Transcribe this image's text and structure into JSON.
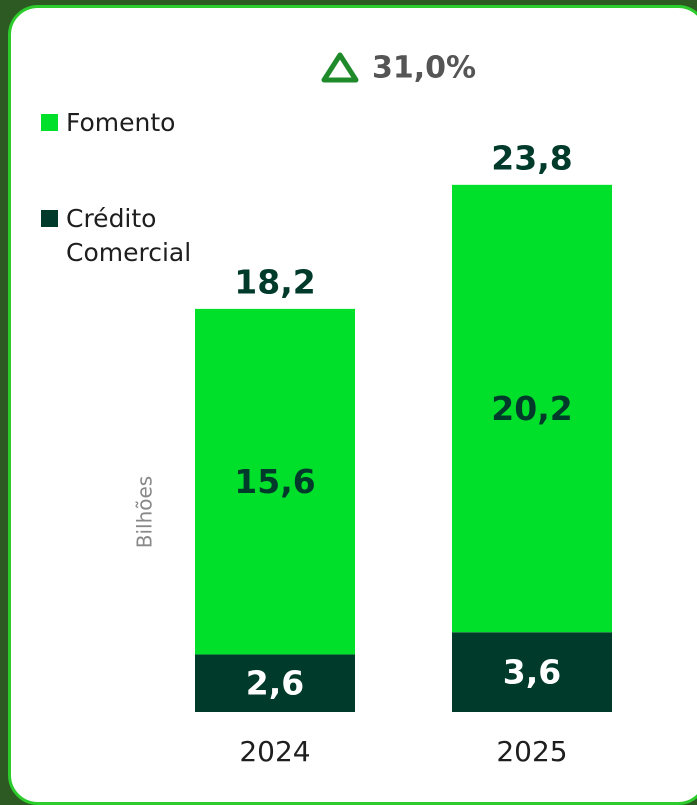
{
  "chart_data": {
    "type": "stacked_bar",
    "annotation": "31,0%",
    "y_label": "Bilhões",
    "categories": [
      "2024",
      "2025"
    ],
    "series": [
      {
        "name": "Fomento",
        "color": "#00e02a",
        "label_color": "#003a2a",
        "values": [
          15.6,
          20.2
        ],
        "value_labels": [
          "15,6",
          "20,2"
        ]
      },
      {
        "name": "Crédito Comercial",
        "color": "#003a2a",
        "label_color": "#ffffff",
        "values": [
          2.6,
          3.6
        ],
        "value_labels": [
          "2,6",
          "3,6"
        ]
      }
    ],
    "totals": [
      18.2,
      23.8
    ],
    "total_labels": [
      "18,2",
      "23,8"
    ]
  }
}
